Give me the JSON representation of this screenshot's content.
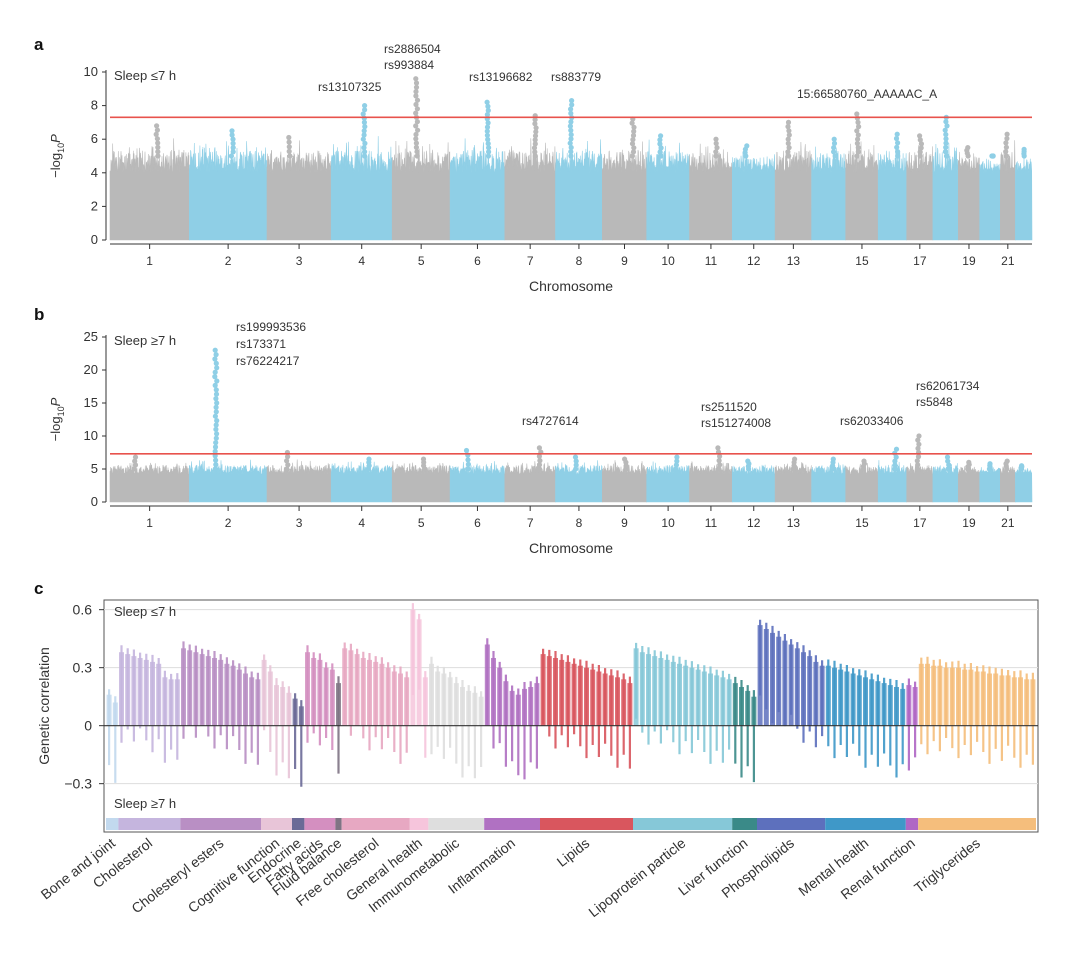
{
  "colors": {
    "grey": "#b9b9b9",
    "blue": "#8fcfe6",
    "threshold": "#e8534d",
    "axis": "#333333"
  },
  "chart_data": [
    {
      "panel": "a",
      "type": "scatter",
      "subtype": "manhattan",
      "panel_label": "a",
      "title": "Sleep ≤7 h",
      "xlabel": "Chromosome",
      "ylabel_prefix": "−log",
      "ylabel_sub": "10",
      "ylabel_suffix": "P",
      "ylim": [
        0,
        10
      ],
      "yticks": [
        0,
        2,
        4,
        6,
        8,
        10
      ],
      "threshold": 7.3,
      "chromosome_tick_labels": [
        "1",
        "2",
        "3",
        "4",
        "5",
        "6",
        "7",
        "8",
        "9",
        "10",
        "11",
        "12",
        "13",
        "15",
        "17",
        "19",
        "21"
      ],
      "chromosomes": [
        1,
        2,
        3,
        4,
        5,
        6,
        7,
        8,
        9,
        10,
        11,
        12,
        13,
        14,
        15,
        16,
        17,
        18,
        19,
        20,
        21,
        22
      ],
      "chromosome_peaks": [
        6.8,
        6.5,
        6.1,
        8.0,
        9.6,
        8.2,
        7.4,
        8.3,
        7.2,
        6.2,
        6.0,
        5.6,
        7.0,
        6.0,
        7.5,
        6.3,
        6.2,
        7.3,
        5.5,
        5.0,
        6.3,
        5.4
      ],
      "annotations": [
        {
          "text": "rs13107325",
          "chrom": 4
        },
        {
          "text": "rs2886504",
          "chrom": 5
        },
        {
          "text": "rs993884",
          "chrom": 5
        },
        {
          "text": "rs13196682",
          "chrom": 6
        },
        {
          "text": "rs883779",
          "chrom": 8
        },
        {
          "text": "15:66580760_AAAAAC_A",
          "chrom": 15
        }
      ]
    },
    {
      "panel": "b",
      "type": "scatter",
      "subtype": "manhattan",
      "panel_label": "b",
      "title": "Sleep ≥7 h",
      "xlabel": "Chromosome",
      "ylabel_prefix": "−log",
      "ylabel_sub": "10",
      "ylabel_suffix": "P",
      "ylim": [
        0,
        25
      ],
      "yticks": [
        0,
        5,
        10,
        15,
        20,
        25
      ],
      "threshold": 7.3,
      "chromosome_tick_labels": [
        "1",
        "2",
        "3",
        "4",
        "5",
        "6",
        "7",
        "8",
        "9",
        "10",
        "11",
        "12",
        "13",
        "15",
        "17",
        "19",
        "21"
      ],
      "chromosomes": [
        1,
        2,
        3,
        4,
        5,
        6,
        7,
        8,
        9,
        10,
        11,
        12,
        13,
        14,
        15,
        16,
        17,
        18,
        19,
        20,
        21,
        22
      ],
      "chromosome_peaks": [
        6.8,
        23.0,
        7.5,
        6.5,
        6.5,
        7.8,
        8.2,
        6.8,
        6.5,
        6.8,
        8.2,
        6.2,
        6.5,
        6.5,
        6.2,
        8.0,
        10.0,
        6.8,
        6.0,
        5.8,
        6.2,
        5.5
      ],
      "annotations": [
        {
          "text": "rs199993536",
          "chrom": 2
        },
        {
          "text": "rs173371",
          "chrom": 2
        },
        {
          "text": "rs76224217",
          "chrom": 2
        },
        {
          "text": "rs4727614",
          "chrom": 7
        },
        {
          "text": "rs2511520",
          "chrom": 11
        },
        {
          "text": "rs151274008",
          "chrom": 11
        },
        {
          "text": "rs62033406",
          "chrom": 16
        },
        {
          "text": "rs62061734",
          "chrom": 17
        },
        {
          "text": "rs5848",
          "chrom": 17
        }
      ]
    },
    {
      "panel": "c",
      "type": "bar",
      "subtype": "error-bar",
      "panel_label": "c",
      "title_top": "Sleep ≤7 h",
      "title_bottom": "Sleep ≥7 h",
      "ylabel": "Genetic correlation",
      "ylim": [
        -0.55,
        0.65
      ],
      "yticks": [
        -0.3,
        0,
        0.3,
        0.6
      ],
      "ytick_labels": [
        "−0.3",
        "0",
        "0.3",
        "0.6"
      ],
      "categories": [
        {
          "name": "Bone and joint",
          "color": "#c2d9ee",
          "values": [
            0.16,
            0.12
          ]
        },
        {
          "name": "Cholesterol",
          "color": "#c5b5de",
          "values": [
            0.38,
            0.37,
            0.36,
            0.35,
            0.34,
            0.33,
            0.32,
            0.25,
            0.24,
            0.24
          ]
        },
        {
          "name": "Cholesteryl esters",
          "color": "#b98fc4",
          "values": [
            0.4,
            0.39,
            0.38,
            0.37,
            0.36,
            0.35,
            0.34,
            0.32,
            0.31,
            0.29,
            0.27,
            0.25,
            0.24
          ]
        },
        {
          "name": "Cognitive function",
          "color": "#e8c5d8",
          "values": [
            0.34,
            0.28,
            0.21,
            0.2,
            0.17
          ]
        },
        {
          "name": "Endocrine",
          "color": "#6b6a97",
          "values": [
            0.14,
            0.1
          ]
        },
        {
          "name": "Fatty acids",
          "color": "#d48fc0",
          "values": [
            0.38,
            0.35,
            0.34,
            0.3,
            0.29
          ]
        },
        {
          "name": "Fluid balance",
          "color": "#7f7484",
          "values": [
            0.22
          ]
        },
        {
          "name": "Free cholesterol",
          "color": "#e7a8c2",
          "values": [
            0.4,
            0.39,
            0.37,
            0.35,
            0.34,
            0.33,
            0.32,
            0.3,
            0.28,
            0.27,
            0.25
          ]
        },
        {
          "name": "General health",
          "color": "#f6c5dc",
          "values": [
            0.6,
            0.55,
            0.25
          ]
        },
        {
          "name": "Immunometabolic",
          "color": "#dedede",
          "values": [
            0.32,
            0.28,
            0.27,
            0.25,
            0.22,
            0.2,
            0.18,
            0.17,
            0.15
          ]
        },
        {
          "name": "Inflammation",
          "color": "#b071c2",
          "values": [
            0.42,
            0.35,
            0.3,
            0.23,
            0.18,
            0.16,
            0.19,
            0.2,
            0.22
          ]
        },
        {
          "name": "Lipids",
          "color": "#d9565e",
          "values": [
            0.37,
            0.36,
            0.35,
            0.34,
            0.33,
            0.32,
            0.31,
            0.3,
            0.29,
            0.28,
            0.27,
            0.26,
            0.25,
            0.24,
            0.22
          ]
        },
        {
          "name": "Lipoprotein particle",
          "color": "#86c8d8",
          "values": [
            0.4,
            0.38,
            0.37,
            0.36,
            0.35,
            0.34,
            0.33,
            0.32,
            0.31,
            0.3,
            0.29,
            0.28,
            0.27,
            0.26,
            0.25,
            0.24
          ]
        },
        {
          "name": "Liver function",
          "color": "#3a8a88",
          "values": [
            0.22,
            0.2,
            0.18,
            0.15
          ]
        },
        {
          "name": "Phospholipids",
          "color": "#5d70bd",
          "values": [
            0.52,
            0.5,
            0.48,
            0.46,
            0.44,
            0.42,
            0.4,
            0.38,
            0.36,
            0.33,
            0.31
          ]
        },
        {
          "name": "Mental health",
          "color": "#3f98c8",
          "values": [
            0.31,
            0.3,
            0.29,
            0.28,
            0.27,
            0.26,
            0.25,
            0.24,
            0.23,
            0.22,
            0.21,
            0.2,
            0.19
          ]
        },
        {
          "name": "Renal function",
          "color": "#b067c5",
          "values": [
            0.21,
            0.2
          ]
        },
        {
          "name": "Triglycerides",
          "color": "#f5be7c",
          "values": [
            0.32,
            0.32,
            0.31,
            0.31,
            0.3,
            0.3,
            0.3,
            0.29,
            0.29,
            0.28,
            0.28,
            0.27,
            0.27,
            0.26,
            0.26,
            0.25,
            0.25,
            0.24,
            0.24
          ]
        }
      ]
    }
  ]
}
